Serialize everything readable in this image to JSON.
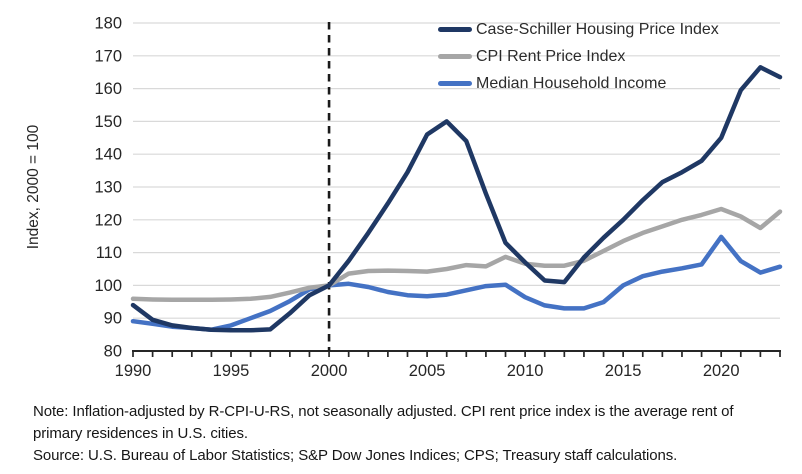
{
  "chart_data": {
    "type": "line",
    "x": [
      1990,
      1991,
      1992,
      1993,
      1994,
      1995,
      1996,
      1997,
      1998,
      1999,
      2000,
      2001,
      2002,
      2003,
      2004,
      2005,
      2006,
      2007,
      2008,
      2009,
      2010,
      2011,
      2012,
      2013,
      2014,
      2015,
      2016,
      2017,
      2018,
      2019,
      2020,
      2021,
      2022,
      2023
    ],
    "series": [
      {
        "name": "Case-Schiller Housing Price Index",
        "color": "#1f3864",
        "values": [
          94,
          89.5,
          87.8,
          87,
          86.5,
          86.3,
          86.3,
          86.6,
          91.5,
          97,
          100,
          107.5,
          116,
          125,
          134.5,
          146,
          150,
          144,
          128,
          113,
          107,
          101.5,
          101,
          108.5,
          114.5,
          120,
          126,
          131.5,
          134.5,
          138,
          145,
          159.5,
          166.5,
          163.5
        ]
      },
      {
        "name": "CPI Rent Price Index",
        "color": "#a6a6a6",
        "values": [
          95.9,
          95.7,
          95.6,
          95.6,
          95.6,
          95.7,
          95.9,
          96.5,
          97.8,
          99.3,
          100,
          103.6,
          104.4,
          104.5,
          104.4,
          104.2,
          105,
          106.2,
          105.8,
          108.7,
          106.6,
          106,
          106,
          107.5,
          110.5,
          113.5,
          116,
          118,
          120,
          121.5,
          123.3,
          121,
          117.5,
          122.5
        ]
      },
      {
        "name": "Median Household Income",
        "color": "#4472c4",
        "values": [
          89.1,
          88.3,
          87.4,
          87,
          86.5,
          87.8,
          90,
          92.2,
          95.2,
          98.8,
          100,
          100.5,
          99.5,
          98,
          97,
          96.7,
          97.2,
          98.5,
          99.8,
          100.2,
          96.4,
          93.9,
          93,
          93,
          94.9,
          100,
          102.8,
          104.2,
          105.2,
          106.4,
          114.8,
          107.4,
          103.9,
          105.7
        ]
      }
    ],
    "title": "",
    "xlabel": "",
    "ylabel": "Index, 2000 = 100",
    "xlim": [
      1990,
      2023
    ],
    "ylim": [
      80,
      180
    ],
    "y_ticks": [
      80,
      90,
      100,
      110,
      120,
      130,
      140,
      150,
      160,
      170,
      180
    ],
    "x_tick_labels": [
      1990,
      1995,
      2000,
      2005,
      2010,
      2015,
      2020
    ],
    "x_minor_tick_interval": 1,
    "reference_line_x": 2000,
    "reference_line_style": "dashed-black",
    "grid": "horizontal",
    "gridline_color": "#d9d9d9",
    "axis_color": "#262626",
    "legend_position": "top-right"
  },
  "notes": {
    "note": "Note: Inflation-adjusted by R-CPI-U-RS, not seasonally adjusted. CPI rent price index is the average rent of primary residences in U.S. cities.",
    "source": "Source: U.S. Bureau of Labor Statistics; S&P Dow Jones Indices; CPS; Treasury staff calculations."
  }
}
